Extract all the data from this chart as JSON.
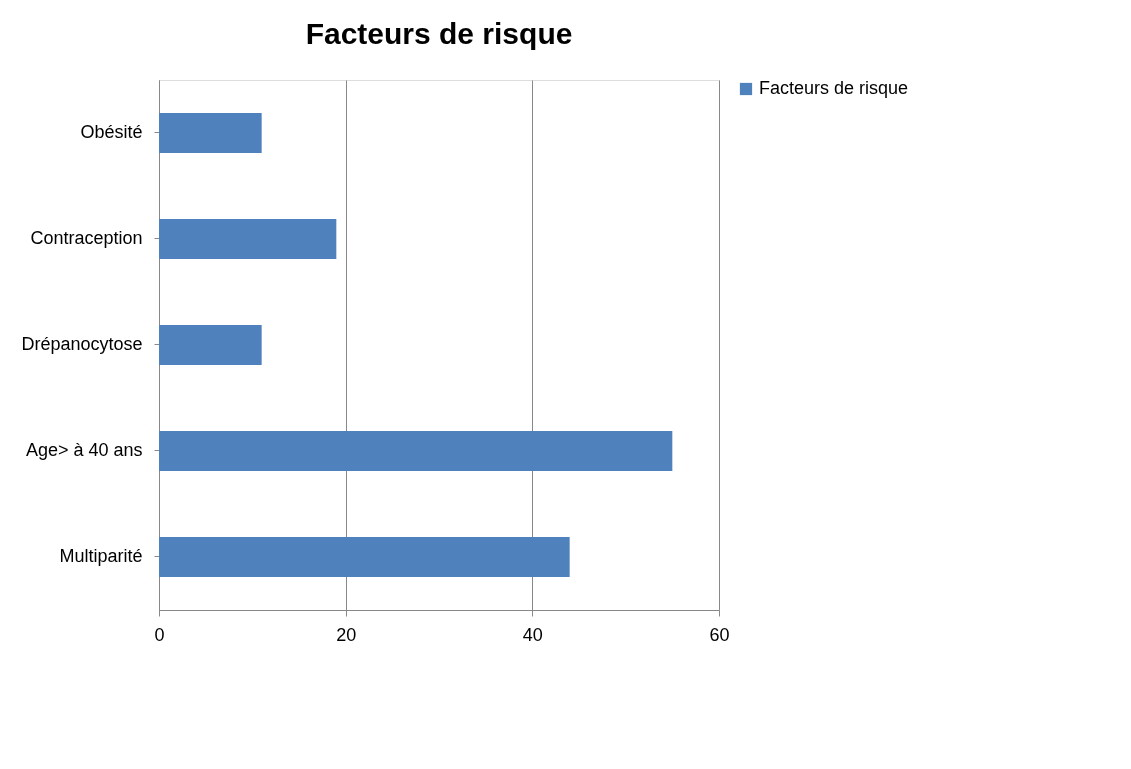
{
  "chart_data": {
    "type": "bar",
    "orientation": "horizontal",
    "title": "Facteurs de risque",
    "categories": [
      "Obésité",
      "Contraception",
      "Drépanocytose",
      "Age> à 40 ans",
      "Multiparité"
    ],
    "series": [
      {
        "name": "Facteurs de risque",
        "color": "#4f81bd",
        "values": [
          11,
          19,
          11,
          55,
          44
        ]
      }
    ],
    "xlim": [
      0,
      60
    ],
    "xticks": [
      0,
      20,
      40,
      60
    ],
    "grid": "x",
    "legend": "right"
  }
}
